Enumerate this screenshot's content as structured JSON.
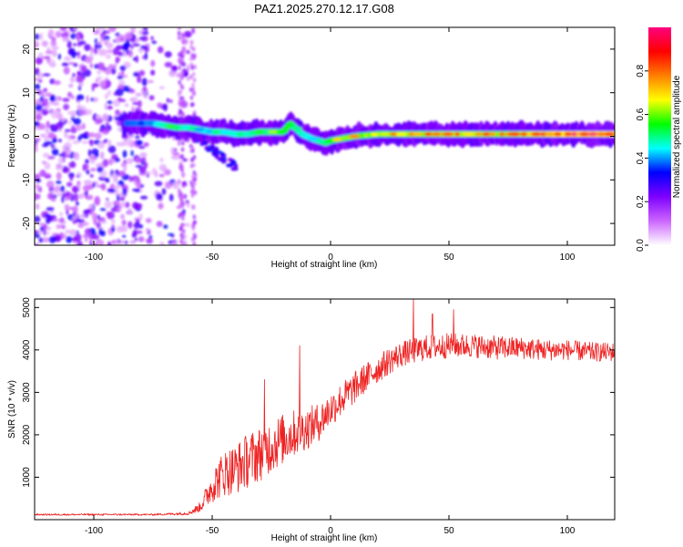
{
  "chart_data": [
    {
      "type": "heatmap",
      "title": "PAZ1.2025.270.12.17.G08",
      "xlabel": "Height of straight line (km)",
      "ylabel": "Frequency (Hz)",
      "xlim": [
        -125,
        120
      ],
      "ylim": [
        -25,
        25
      ],
      "xticks": [
        -100,
        -50,
        0,
        50,
        100
      ],
      "yticks": [
        -20,
        -10,
        0,
        10,
        20
      ],
      "colorbar": {
        "label": "Normalized spectral amplitude",
        "range": [
          0,
          1
        ],
        "ticks": [
          0.0,
          0.2,
          0.4,
          0.6,
          0.8
        ],
        "tick_labels": [
          "0.0",
          "0.2",
          "0.4",
          "0.6",
          "0.8"
        ],
        "colors": [
          "#ffffff",
          "#cc66ff",
          "#7f00ff",
          "#0000ff",
          "#00ffff",
          "#00ff00",
          "#ffff00",
          "#ff7f00",
          "#ff0000",
          "#ff0080"
        ]
      },
      "ridge": {
        "x": [
          -85,
          -75,
          -70,
          -65,
          -60,
          -55,
          -50,
          -45,
          -40,
          -35,
          -30,
          -25,
          -20,
          -17,
          -15,
          -12,
          -10,
          -8,
          -5,
          -2,
          0,
          5,
          10,
          20,
          30,
          40,
          50,
          60,
          70,
          80,
          90,
          100,
          110,
          120
        ],
        "y": [
          3,
          3,
          2.5,
          2,
          2,
          1.5,
          1,
          1,
          0.5,
          0.5,
          1,
          1,
          1,
          3,
          2,
          0.5,
          0,
          -0.5,
          -1,
          -1.5,
          -1,
          -0.5,
          0,
          0.5,
          0.5,
          0.5,
          0.5,
          0.5,
          0.5,
          0.5,
          0.5,
          0.5,
          0.5,
          0.5
        ],
        "amplitude": [
          0.35,
          0.4,
          0.55,
          0.6,
          0.55,
          0.5,
          0.5,
          0.55,
          0.5,
          0.55,
          0.6,
          0.6,
          0.65,
          0.7,
          0.6,
          0.55,
          0.5,
          0.5,
          0.55,
          0.6,
          0.65,
          0.7,
          0.75,
          0.75,
          0.8,
          0.8,
          0.85,
          0.85,
          0.8,
          0.85,
          0.9,
          0.95,
          0.95,
          0.95
        ]
      },
      "noise_region_x": [
        -125,
        -60
      ],
      "noise_region_amplitude": [
        0.05,
        0.35
      ],
      "branch": {
        "x": [
          -60,
          -55,
          -50,
          -45,
          -40
        ],
        "y": [
          1,
          -1,
          -3,
          -5,
          -7
        ]
      }
    },
    {
      "type": "line",
      "title": "",
      "xlabel": "Height of straight line (km)",
      "ylabel": "SNR (10 * v/v)",
      "xlim": [
        -125,
        120
      ],
      "ylim": [
        0,
        5200
      ],
      "xticks": [
        -100,
        -50,
        0,
        50,
        100
      ],
      "yticks": [
        1000,
        2000,
        3000,
        4000,
        5000
      ],
      "color": "#ee2222",
      "x": [
        -125,
        -100,
        -75,
        -60,
        -55,
        -50,
        -45,
        -40,
        -35,
        -30,
        -25,
        -20,
        -15,
        -10,
        -5,
        0,
        5,
        10,
        15,
        20,
        25,
        30,
        40,
        50,
        60,
        70,
        80,
        90,
        100,
        110,
        120
      ],
      "y": [
        120,
        120,
        120,
        150,
        300,
        800,
        1100,
        1200,
        1400,
        1550,
        1750,
        1900,
        2050,
        2150,
        2300,
        2600,
        2850,
        3100,
        3350,
        3550,
        3750,
        3900,
        4050,
        4100,
        4100,
        4050,
        4050,
        4000,
        4000,
        3950,
        3950
      ],
      "noise_amplitude": [
        20,
        20,
        20,
        40,
        120,
        400,
        550,
        600,
        650,
        650,
        650,
        600,
        550,
        500,
        450,
        420,
        400,
        380,
        350,
        330,
        320,
        300,
        300,
        300,
        280,
        280,
        260,
        250,
        240,
        230,
        220
      ],
      "spikes": [
        {
          "x": -28,
          "y": 3300
        },
        {
          "x": -13,
          "y": 4100
        },
        {
          "x": 35,
          "y": 5200
        },
        {
          "x": 43,
          "y": 4850
        },
        {
          "x": 52,
          "y": 4950
        }
      ]
    }
  ]
}
